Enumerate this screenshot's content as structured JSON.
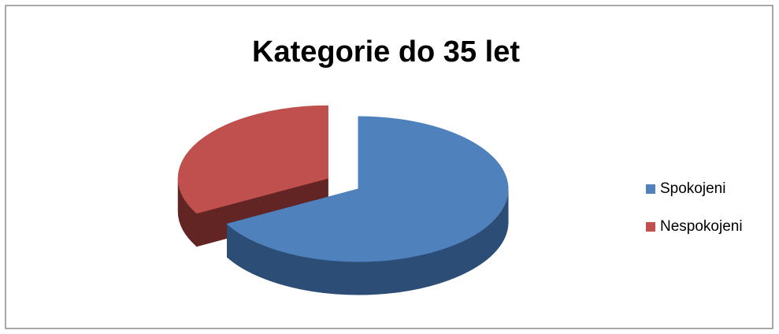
{
  "chart_data": {
    "type": "pie",
    "title": "Kategorie do 35 let",
    "categories": [
      "Spokojeni",
      "Nespokojeni"
    ],
    "values": [
      67,
      33
    ],
    "colors": [
      "#4f81bd",
      "#c0504d"
    ],
    "side_colors": [
      "#2c4d75",
      "#632523"
    ],
    "legend": "right",
    "exploded": [
      false,
      true
    ]
  }
}
